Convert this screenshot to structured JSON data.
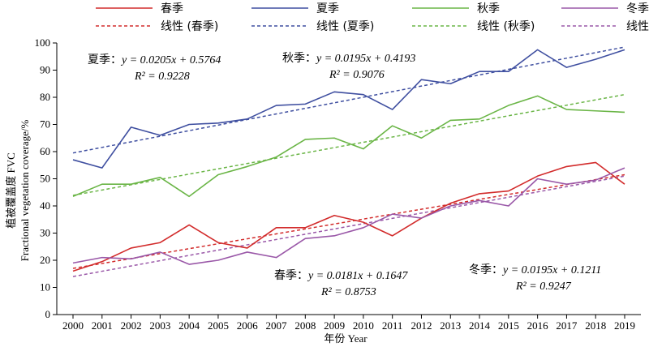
{
  "chart_data": {
    "type": "line",
    "xlabel": "年份 Year",
    "ylabel_lines": [
      "植被覆盖度 FVC",
      "Fractional vegetation coverage/%"
    ],
    "ylim": [
      0,
      100
    ],
    "yticks": [
      0,
      10,
      20,
      30,
      40,
      50,
      60,
      70,
      80,
      90,
      100
    ],
    "grid": false,
    "legend_position": "top",
    "x": [
      2000,
      2001,
      2002,
      2003,
      2004,
      2005,
      2006,
      2007,
      2008,
      2009,
      2010,
      2011,
      2012,
      2013,
      2014,
      2015,
      2016,
      2017,
      2018,
      2019
    ],
    "series": [
      {
        "name": "春季",
        "color": "#d22b2b",
        "values": [
          16,
          19.5,
          24.5,
          26.5,
          33,
          26.5,
          24.5,
          32,
          32,
          36.5,
          34,
          29,
          35.5,
          41,
          44.5,
          45.5,
          51,
          54.5,
          56,
          48
        ]
      },
      {
        "name": "夏季",
        "color": "#3f4fa0",
        "values": [
          57,
          54,
          69,
          66,
          70,
          70.5,
          72,
          77,
          77.5,
          82,
          81,
          75.5,
          86.5,
          85,
          89.5,
          89.5,
          97.5,
          91,
          94,
          97.5
        ]
      },
      {
        "name": "秋季",
        "color": "#6ab546",
        "values": [
          43.5,
          48,
          48,
          50.5,
          43.5,
          51.5,
          54.5,
          58,
          64.5,
          65,
          61,
          69.5,
          65,
          71.5,
          72,
          77,
          80.5,
          75.5,
          75,
          74.5
        ]
      },
      {
        "name": "冬季",
        "color": "#9a58a8",
        "values": [
          19,
          21,
          20.5,
          23,
          18.5,
          20,
          23,
          21,
          28,
          29,
          32,
          37,
          35.5,
          40,
          42,
          40,
          50,
          48,
          49.5,
          54
        ]
      }
    ],
    "trendlines": [
      {
        "name": "线性 (春季)",
        "color": "#d22b2b",
        "start": 17.0,
        "end": 51.5
      },
      {
        "name": "线性 (夏季)",
        "color": "#3f4fa0",
        "start": 59.5,
        "end": 98.5
      },
      {
        "name": "线性 (秋季)",
        "color": "#6ab546",
        "start": 43.9,
        "end": 81.0
      },
      {
        "name": "线性 (冬季)",
        "color": "#9a58a8",
        "start": 14.0,
        "end": 51.0
      }
    ],
    "annotations": [
      {
        "label": "夏季：",
        "eq": "y = 0.0205x + 0.5764",
        "r2": "R² = 0.9228"
      },
      {
        "label": "秋季：",
        "eq": "y = 0.0195x + 0.4193",
        "r2": "R² = 0.9076"
      },
      {
        "label": "春季：",
        "eq": "y = 0.0181x + 0.1647",
        "r2": "R² = 0.8753"
      },
      {
        "label": "冬季：",
        "eq": "y = 0.0195x + 0.1211",
        "r2": "R² = 0.9247"
      }
    ]
  }
}
